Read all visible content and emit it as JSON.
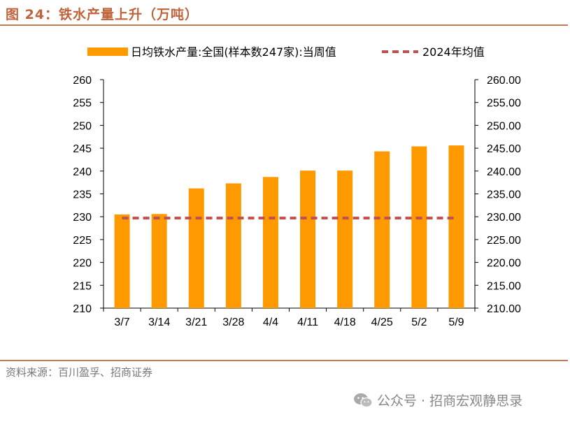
{
  "figure": {
    "title": "图 24：铁水产量上升（万吨）",
    "source": "资料来源：百川盈孚、招商证券",
    "watermark": "公众号 · 招商宏观静思录"
  },
  "chart_data": {
    "type": "bar",
    "categories": [
      "3/7",
      "3/14",
      "3/21",
      "3/28",
      "4/4",
      "4/11",
      "4/18",
      "4/25",
      "5/2",
      "5/9"
    ],
    "series": [
      {
        "name": "日均铁水产量:全国(样本数247家):当周值",
        "type": "bar",
        "color": "#ff9900",
        "values": [
          230.5,
          230.6,
          236.2,
          237.3,
          238.7,
          240.1,
          240.1,
          244.3,
          245.4,
          245.6
        ]
      },
      {
        "name": "2024年均值",
        "type": "line",
        "style": "dashed",
        "color": "#c0504d",
        "values": [
          229.7,
          229.7,
          229.7,
          229.7,
          229.7,
          229.7,
          229.7,
          229.7,
          229.7,
          229.7
        ]
      }
    ],
    "ylim": [
      210,
      260
    ],
    "y_ticks": [
      "260",
      "255",
      "250",
      "245",
      "240",
      "235",
      "230",
      "225",
      "220",
      "215",
      "210"
    ],
    "y2_ticks": [
      "260.00",
      "255.00",
      "250.00",
      "245.00",
      "240.00",
      "235.00",
      "230.00",
      "225.00",
      "220.00",
      "215.00",
      "210.00"
    ],
    "legend_position": "top",
    "grid": false
  }
}
